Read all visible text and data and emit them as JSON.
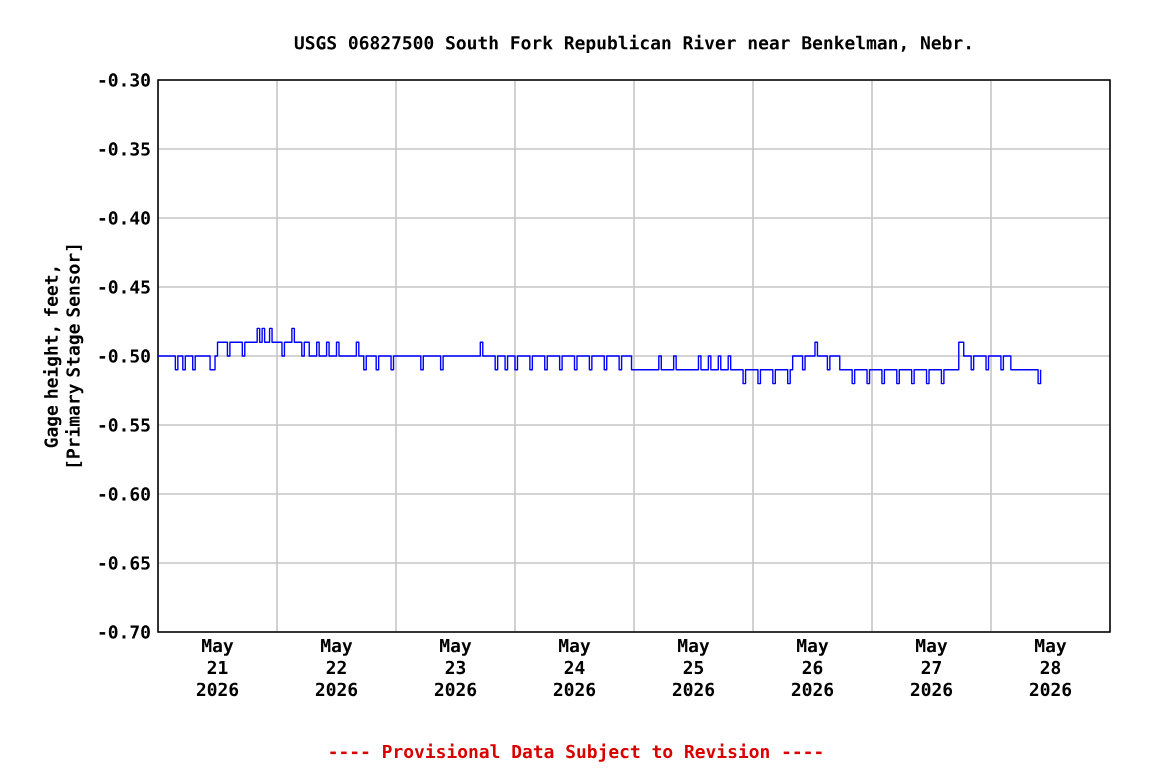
{
  "chart_data": {
    "type": "step",
    "title": "USGS 06827500 South Fork Republican River near Benkelman, Nebr.",
    "ylabel": "Gage height, feet, [Primary Stage Sensor]",
    "annotations": [
      "---- Provisional Data Subject to Revision ----"
    ],
    "color": "#0000ff",
    "grid": true,
    "xlim": [
      "2026-05-21T00:00",
      "2026-05-29T00:00"
    ],
    "ylim": [
      -0.7,
      -0.3
    ],
    "xticks": [
      {
        "value": "2026-05-21T12:00",
        "label": "May 21 2026"
      },
      {
        "value": "2026-05-22T00:00",
        "label": null
      },
      {
        "value": "2026-05-22T12:00",
        "label": "May 22 2026"
      },
      {
        "value": "2026-05-23T00:00",
        "label": null
      },
      {
        "value": "2026-05-23T12:00",
        "label": "May 23 2026"
      },
      {
        "value": "2026-05-24T00:00",
        "label": null
      },
      {
        "value": "2026-05-24T12:00",
        "label": "May 24 2026"
      },
      {
        "value": "2026-05-25T00:00",
        "label": null
      },
      {
        "value": "2026-05-25T12:00",
        "label": "May 25 2026"
      },
      {
        "value": "2026-05-26T00:00",
        "label": null
      },
      {
        "value": "2026-05-26T12:00",
        "label": "May 26 2026"
      },
      {
        "value": "2026-05-27T00:00",
        "label": null
      },
      {
        "value": "2026-05-27T12:00",
        "label": "May 27 2026"
      },
      {
        "value": "2026-05-28T00:00",
        "label": null
      },
      {
        "value": "2026-05-28T12:00",
        "label": "May 28 2026"
      }
    ],
    "yticks": [
      {
        "value": -0.3,
        "label": "-0.30"
      },
      {
        "value": -0.35,
        "label": "-0.35"
      },
      {
        "value": -0.4,
        "label": "-0.40"
      },
      {
        "value": -0.45,
        "label": "-0.45"
      },
      {
        "value": -0.5,
        "label": "-0.50"
      },
      {
        "value": -0.55,
        "label": "-0.55"
      },
      {
        "value": -0.6,
        "label": "-0.60"
      },
      {
        "value": -0.65,
        "label": "-0.65"
      },
      {
        "value": -0.7,
        "label": "-0.70"
      }
    ],
    "x": [
      "2026-05-21T00:00",
      "2026-05-21T03:30",
      "2026-05-21T04:00",
      "2026-05-21T05:00",
      "2026-05-21T05:30",
      "2026-05-21T07:00",
      "2026-05-21T07:30",
      "2026-05-21T10:30",
      "2026-05-21T11:30",
      "2026-05-21T12:00",
      "2026-05-21T14:00",
      "2026-05-21T14:30",
      "2026-05-21T17:00",
      "2026-05-21T17:30",
      "2026-05-21T20:00",
      "2026-05-21T20:30",
      "2026-05-21T21:00",
      "2026-05-21T21:30",
      "2026-05-21T22:30",
      "2026-05-21T23:00",
      "2026-05-22T01:00",
      "2026-05-22T01:30",
      "2026-05-22T03:00",
      "2026-05-22T03:30",
      "2026-05-22T05:00",
      "2026-05-22T05:30",
      "2026-05-22T06:30",
      "2026-05-22T08:00",
      "2026-05-22T08:30",
      "2026-05-22T10:00",
      "2026-05-22T10:30",
      "2026-05-22T12:00",
      "2026-05-22T12:30",
      "2026-05-22T16:00",
      "2026-05-22T16:30",
      "2026-05-22T17:30",
      "2026-05-22T18:00",
      "2026-05-22T20:00",
      "2026-05-22T20:30",
      "2026-05-22T23:00",
      "2026-05-22T23:30",
      "2026-05-23T05:00",
      "2026-05-23T05:30",
      "2026-05-23T09:00",
      "2026-05-23T09:30",
      "2026-05-23T17:00",
      "2026-05-23T17:30",
      "2026-05-23T20:00",
      "2026-05-23T20:30",
      "2026-05-23T22:00",
      "2026-05-23T22:30",
      "2026-05-24T00:00",
      "2026-05-24T00:30",
      "2026-05-24T03:00",
      "2026-05-24T03:30",
      "2026-05-24T06:00",
      "2026-05-24T06:30",
      "2026-05-24T09:00",
      "2026-05-24T09:30",
      "2026-05-24T12:00",
      "2026-05-24T12:30",
      "2026-05-24T15:00",
      "2026-05-24T15:30",
      "2026-05-24T18:00",
      "2026-05-24T18:30",
      "2026-05-24T21:00",
      "2026-05-24T21:30",
      "2026-05-24T23:30",
      "2026-05-25T05:00",
      "2026-05-25T05:30",
      "2026-05-25T08:00",
      "2026-05-25T08:30",
      "2026-05-25T13:00",
      "2026-05-25T13:30",
      "2026-05-25T15:00",
      "2026-05-25T15:30",
      "2026-05-25T17:00",
      "2026-05-25T17:30",
      "2026-05-25T19:00",
      "2026-05-25T19:30",
      "2026-05-25T22:00",
      "2026-05-25T22:30",
      "2026-05-26T01:00",
      "2026-05-26T01:30",
      "2026-05-26T04:00",
      "2026-05-26T04:30",
      "2026-05-26T07:00",
      "2026-05-26T07:30",
      "2026-05-26T08:00",
      "2026-05-26T10:00",
      "2026-05-26T10:30",
      "2026-05-26T12:30",
      "2026-05-26T13:00",
      "2026-05-26T15:00",
      "2026-05-26T15:30",
      "2026-05-26T17:30",
      "2026-05-26T20:00",
      "2026-05-26T20:30",
      "2026-05-26T23:00",
      "2026-05-26T23:30",
      "2026-05-27T02:00",
      "2026-05-27T02:30",
      "2026-05-27T05:00",
      "2026-05-27T05:30",
      "2026-05-27T08:00",
      "2026-05-27T08:30",
      "2026-05-27T11:00",
      "2026-05-27T11:30",
      "2026-05-27T14:00",
      "2026-05-27T14:30",
      "2026-05-27T17:30",
      "2026-05-27T18:30",
      "2026-05-27T20:00",
      "2026-05-27T20:30",
      "2026-05-27T23:00",
      "2026-05-27T23:30",
      "2026-05-28T02:00",
      "2026-05-28T02:30",
      "2026-05-28T04:00",
      "2026-05-28T09:30",
      "2026-05-28T10:00"
    ],
    "values": [
      -0.5,
      -0.51,
      -0.5,
      -0.51,
      -0.5,
      -0.51,
      -0.5,
      -0.51,
      -0.5,
      -0.49,
      -0.5,
      -0.49,
      -0.5,
      -0.49,
      -0.48,
      -0.49,
      -0.48,
      -0.49,
      -0.48,
      -0.49,
      -0.5,
      -0.49,
      -0.48,
      -0.49,
      -0.5,
      -0.49,
      -0.5,
      -0.49,
      -0.5,
      -0.49,
      -0.5,
      -0.49,
      -0.5,
      -0.49,
      -0.5,
      -0.51,
      -0.5,
      -0.51,
      -0.5,
      -0.51,
      -0.5,
      -0.51,
      -0.5,
      -0.51,
      -0.5,
      -0.49,
      -0.5,
      -0.51,
      -0.5,
      -0.51,
      -0.5,
      -0.51,
      -0.5,
      -0.51,
      -0.5,
      -0.51,
      -0.5,
      -0.51,
      -0.5,
      -0.51,
      -0.5,
      -0.51,
      -0.5,
      -0.51,
      -0.5,
      -0.51,
      -0.5,
      -0.51,
      -0.5,
      -0.51,
      -0.5,
      -0.51,
      -0.5,
      -0.51,
      -0.5,
      -0.51,
      -0.5,
      -0.51,
      -0.5,
      -0.51,
      -0.52,
      -0.51,
      -0.52,
      -0.51,
      -0.52,
      -0.51,
      -0.52,
      -0.51,
      -0.5,
      -0.51,
      -0.5,
      -0.49,
      -0.5,
      -0.51,
      -0.5,
      -0.51,
      -0.52,
      -0.51,
      -0.52,
      -0.51,
      -0.52,
      -0.51,
      -0.52,
      -0.51,
      -0.52,
      -0.51,
      -0.52,
      -0.51,
      -0.52,
      -0.51,
      -0.49,
      -0.5,
      -0.51,
      -0.5,
      -0.51,
      -0.5,
      -0.51,
      -0.5,
      -0.51,
      -0.52,
      -0.51
    ]
  }
}
